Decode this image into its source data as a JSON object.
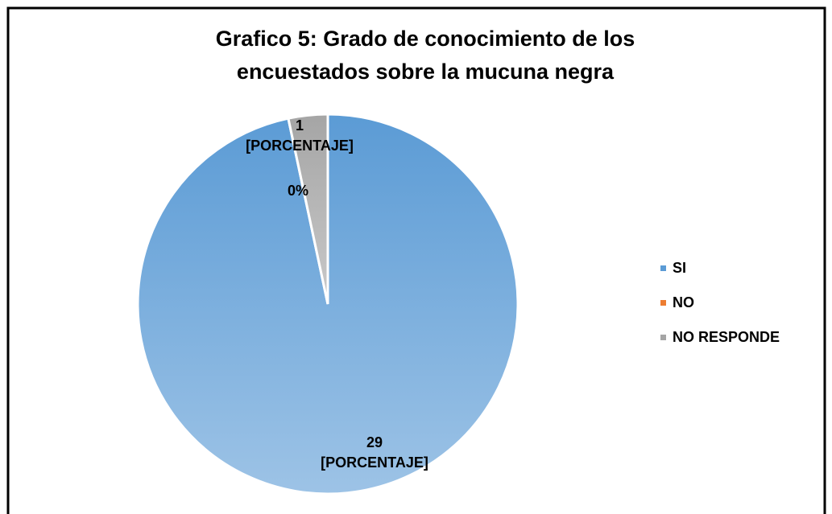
{
  "chart_data": {
    "type": "pie",
    "title": "Grafico 5: Grado de conocimiento de los encuestados sobre la mucuna negra",
    "categories": [
      "SI",
      "NO",
      "NO RESPONDE"
    ],
    "values": [
      29,
      0,
      1
    ],
    "value_labels": [
      "29\n[PORCENTAJE]",
      "0%",
      "1\n[PORCENTAJE]"
    ],
    "colors": [
      "#5b9bd5",
      "#ed7d31",
      "#a5a5a5"
    ],
    "legend": "right"
  }
}
